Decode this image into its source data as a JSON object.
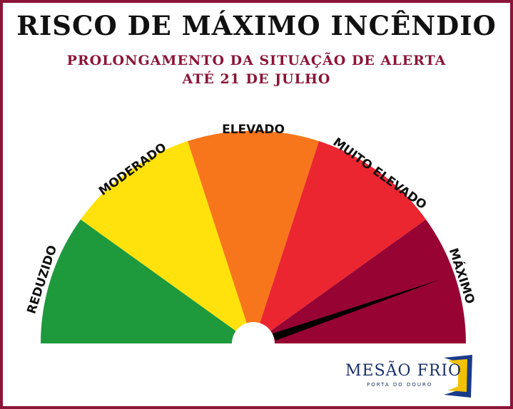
{
  "header": {
    "title": "RISCO DE MÁXIMO INCÊNDIO",
    "subtitle_line1": "PROLONGAMENTO DA SITUAÇÃO DE ALERTA",
    "subtitle_line2": "ATÉ 21 DE JULHO"
  },
  "gauge": {
    "levels": [
      {
        "label": "REDUZIDO",
        "color": "#1e9a3d"
      },
      {
        "label": "MODERADO",
        "color": "#ffe20c"
      },
      {
        "label": "ELEVADO",
        "color": "#f7761c"
      },
      {
        "label": "MUITO ELEVADO",
        "color": "#eb2630"
      },
      {
        "label": "MÁXIMO",
        "color": "#970433"
      }
    ],
    "current_level": "MÁXIMO"
  },
  "logo": {
    "name": "MESÃO FRIO",
    "tagline": "PORTA DO DOURO"
  },
  "colors": {
    "frame": "#8a1538",
    "title": "#111111",
    "subtitle": "#8a1538",
    "logo_text": "#1a2f6b",
    "logo_blue": "#1a3a8a",
    "logo_yellow": "#f2c200"
  }
}
